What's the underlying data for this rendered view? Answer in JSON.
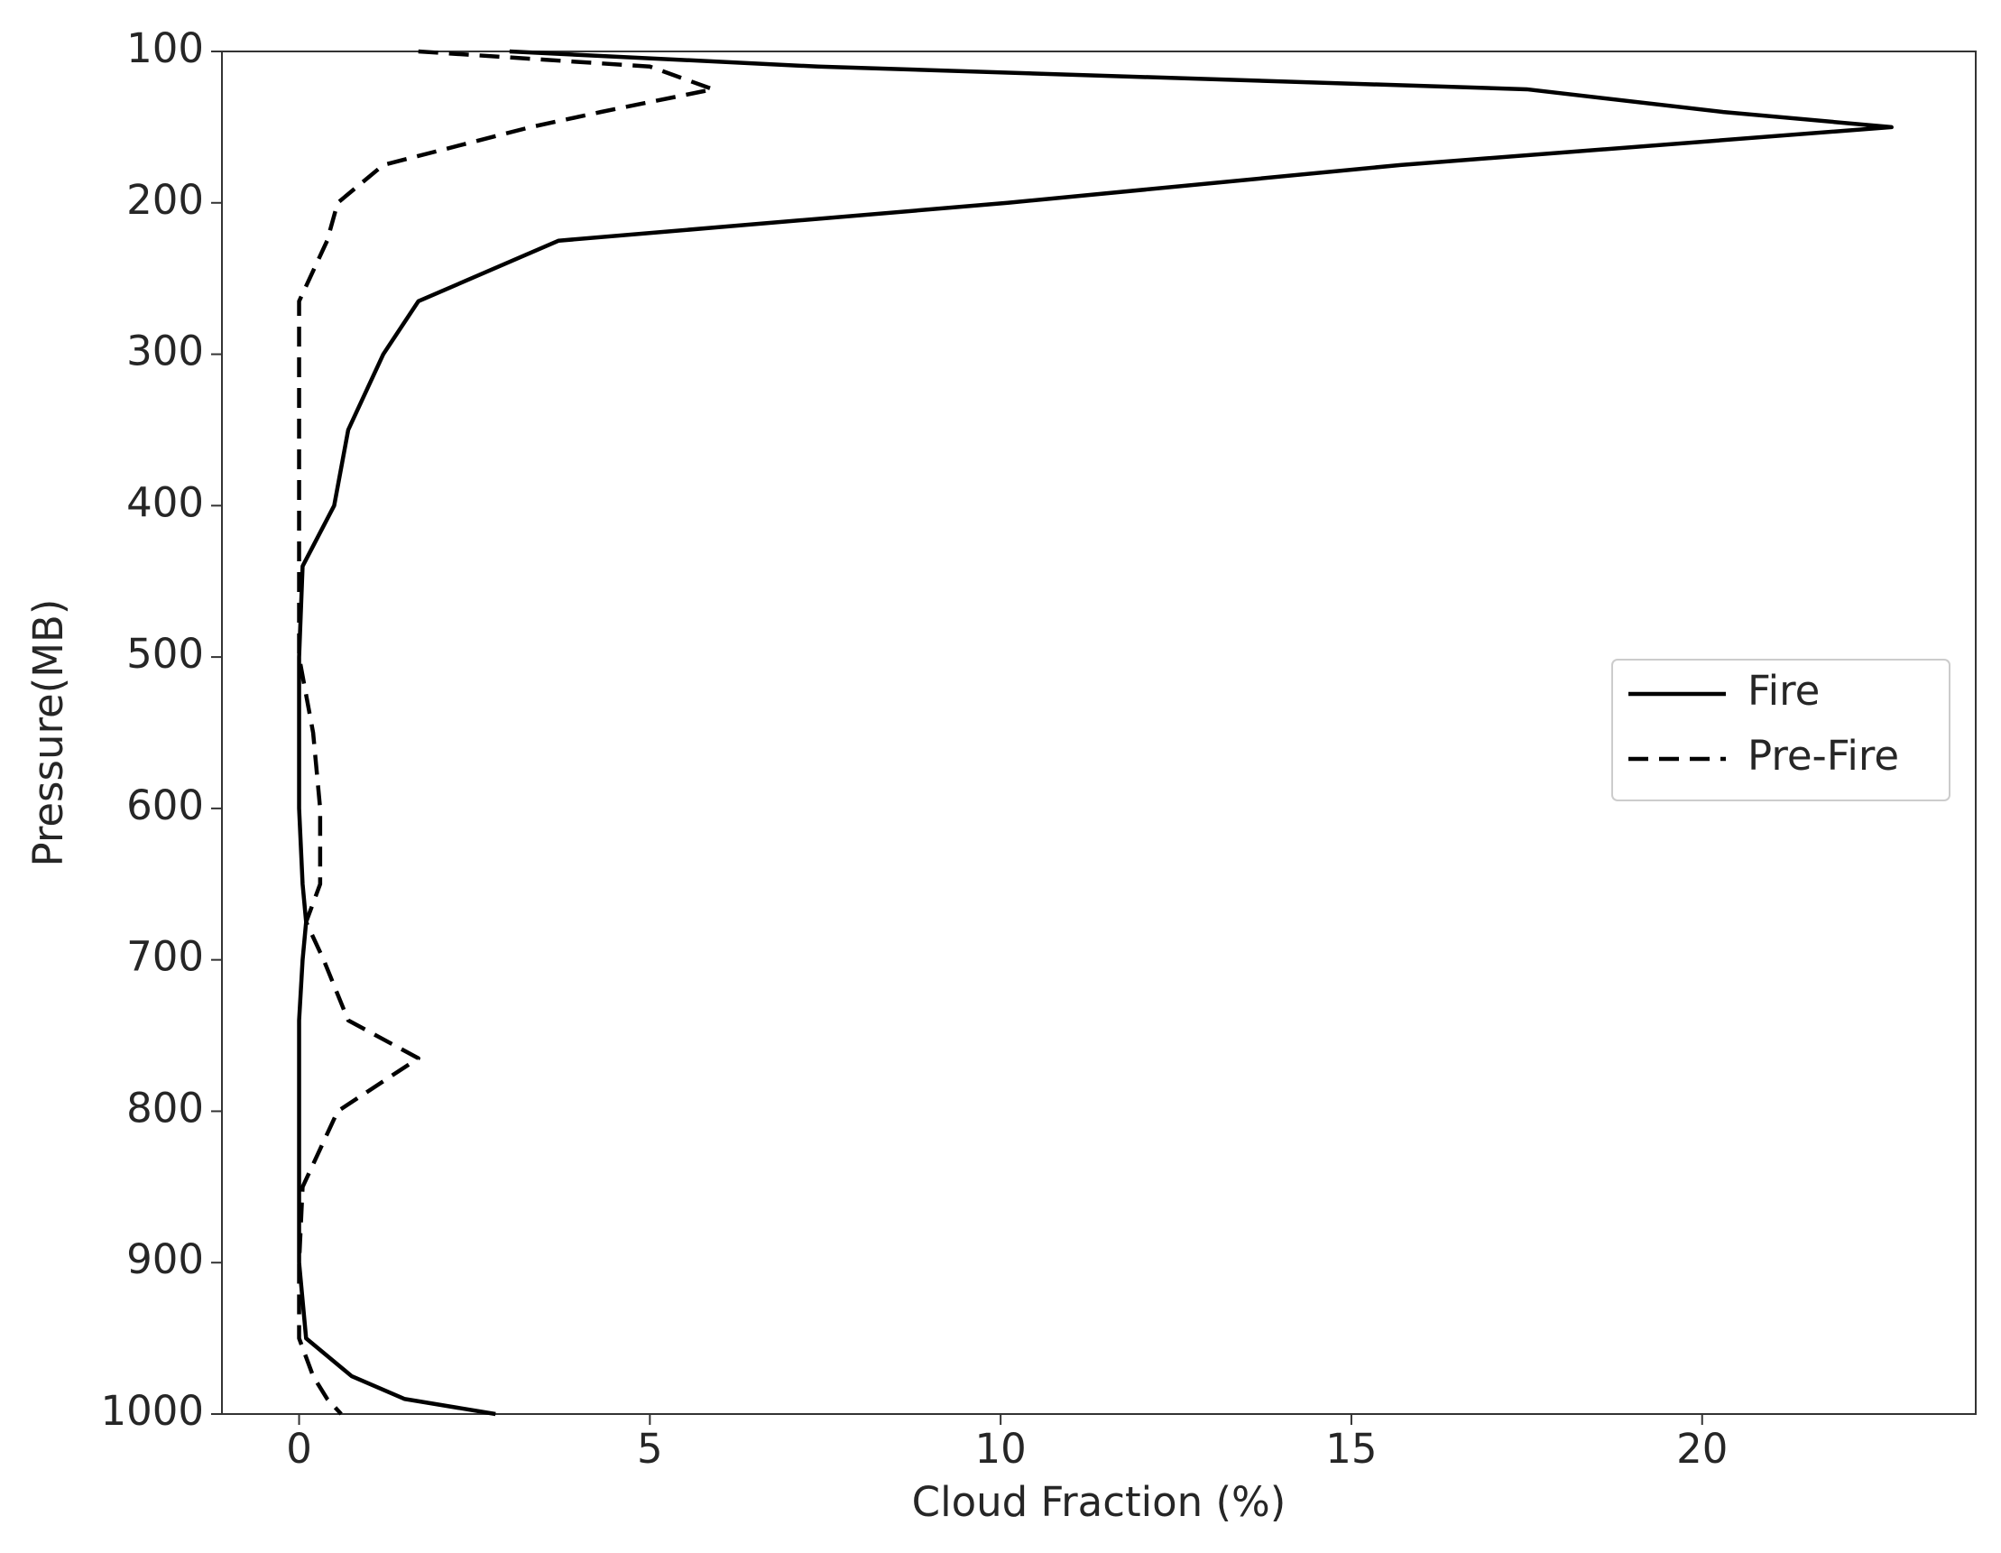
{
  "chart_data": {
    "type": "line",
    "xlabel": "Cloud Fraction (%)",
    "ylabel": "Pressure(MB)",
    "y": [
      100,
      110,
      125,
      140,
      150,
      175,
      200,
      225,
      265,
      300,
      350,
      400,
      440,
      500,
      550,
      600,
      650,
      675,
      700,
      740,
      765,
      800,
      850,
      900,
      950,
      975,
      990,
      1000
    ],
    "series": [
      {
        "name": "Fire",
        "color": "#000000",
        "linestyle": "solid",
        "values": [
          3.0,
          7.4,
          17.5,
          20.3,
          22.7,
          15.7,
          10.1,
          3.7,
          1.7,
          1.2,
          0.7,
          0.5,
          0.05,
          0.0,
          0.0,
          0.0,
          0.05,
          0.1,
          0.05,
          0.0,
          0.0,
          0.0,
          0.0,
          0.0,
          0.1,
          0.75,
          1.5,
          2.8
        ]
      },
      {
        "name": "Pre-Fire",
        "color": "#000000",
        "linestyle": "dashed",
        "values": [
          1.7,
          5.0,
          5.9,
          4.3,
          3.3,
          1.2,
          0.55,
          0.4,
          0.0,
          0.0,
          0.0,
          0.0,
          0.0,
          0.0,
          0.2,
          0.3,
          0.3,
          0.1,
          0.35,
          0.7,
          1.7,
          0.55,
          0.05,
          0.0,
          0.0,
          0.2,
          0.4,
          0.6
        ]
      }
    ],
    "xlim": [
      -1.1,
      23.9
    ],
    "xticks": [
      0,
      5,
      10,
      15,
      20
    ],
    "ylim": [
      1000,
      100
    ],
    "yticks": [
      100,
      200,
      300,
      400,
      500,
      600,
      700,
      800,
      900,
      1000
    ],
    "legend": "center right"
  }
}
